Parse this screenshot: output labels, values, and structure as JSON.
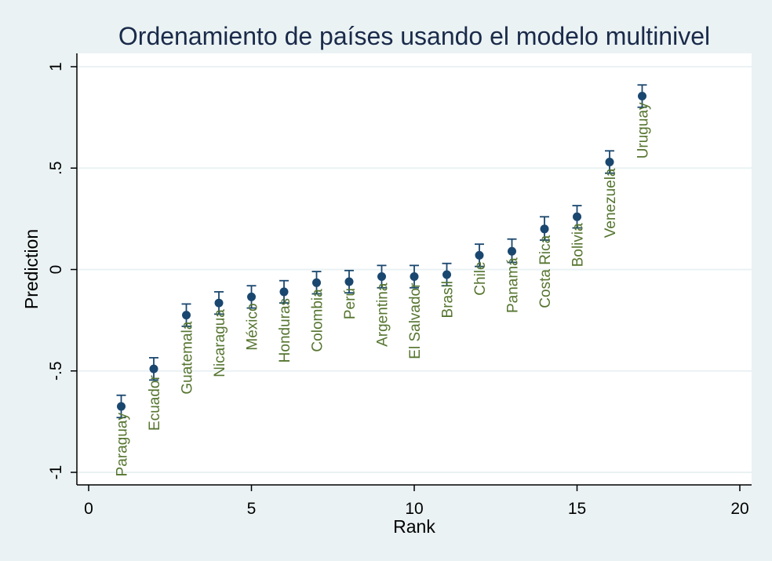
{
  "chart_data": {
    "type": "scatter",
    "title": "Ordenamiento de países usando el modelo multinivel",
    "xlabel": "Rank",
    "ylabel": "Prediction",
    "xlim": [
      0,
      20
    ],
    "ylim": [
      -1,
      1
    ],
    "x_ticks": [
      0,
      5,
      10,
      15,
      20
    ],
    "x_tick_labels": [
      "0",
      "5",
      "10",
      "15",
      "20"
    ],
    "y_ticks": [
      -1,
      -0.5,
      0,
      0.5,
      1
    ],
    "y_tick_labels": [
      "-1",
      "-.5",
      "0",
      ".5",
      "1"
    ],
    "grid": "horizontal",
    "colors": {
      "background": "#eaf2f3",
      "plot_background": "#ffffff",
      "marker": "#1a476f",
      "label": "#55752f",
      "title": "#1a2a4a",
      "grid": "#eaf2f3"
    },
    "points": [
      {
        "x": 1,
        "y": -0.675,
        "lo": -0.73,
        "hi": -0.62,
        "label": "Paraguay"
      },
      {
        "x": 2,
        "y": -0.49,
        "lo": -0.545,
        "hi": -0.435,
        "label": "Ecuador"
      },
      {
        "x": 3,
        "y": -0.225,
        "lo": -0.28,
        "hi": -0.17,
        "label": "Guatemala"
      },
      {
        "x": 4,
        "y": -0.165,
        "lo": -0.22,
        "hi": -0.11,
        "label": "Nicaragua"
      },
      {
        "x": 5,
        "y": -0.135,
        "lo": -0.19,
        "hi": -0.08,
        "label": "México"
      },
      {
        "x": 6,
        "y": -0.11,
        "lo": -0.165,
        "hi": -0.055,
        "label": "Honduras"
      },
      {
        "x": 7,
        "y": -0.065,
        "lo": -0.12,
        "hi": -0.01,
        "label": "Colombia"
      },
      {
        "x": 8,
        "y": -0.06,
        "lo": -0.115,
        "hi": -0.005,
        "label": "Perú"
      },
      {
        "x": 9,
        "y": -0.035,
        "lo": -0.09,
        "hi": 0.02,
        "label": "Argentina"
      },
      {
        "x": 10,
        "y": -0.035,
        "lo": -0.09,
        "hi": 0.02,
        "label": "El Salvador"
      },
      {
        "x": 11,
        "y": -0.025,
        "lo": -0.08,
        "hi": 0.03,
        "label": "Brasil"
      },
      {
        "x": 12,
        "y": 0.07,
        "lo": 0.015,
        "hi": 0.125,
        "label": "Chile"
      },
      {
        "x": 13,
        "y": 0.09,
        "lo": 0.035,
        "hi": 0.15,
        "label": "Panamá"
      },
      {
        "x": 14,
        "y": 0.2,
        "lo": 0.145,
        "hi": 0.26,
        "label": "Costa Rica"
      },
      {
        "x": 15,
        "y": 0.26,
        "lo": 0.205,
        "hi": 0.315,
        "label": "Bolivia"
      },
      {
        "x": 16,
        "y": 0.53,
        "lo": 0.475,
        "hi": 0.585,
        "label": "Venezuela"
      },
      {
        "x": 17,
        "y": 0.855,
        "lo": 0.8,
        "hi": 0.91,
        "label": "Uruguay"
      }
    ]
  }
}
